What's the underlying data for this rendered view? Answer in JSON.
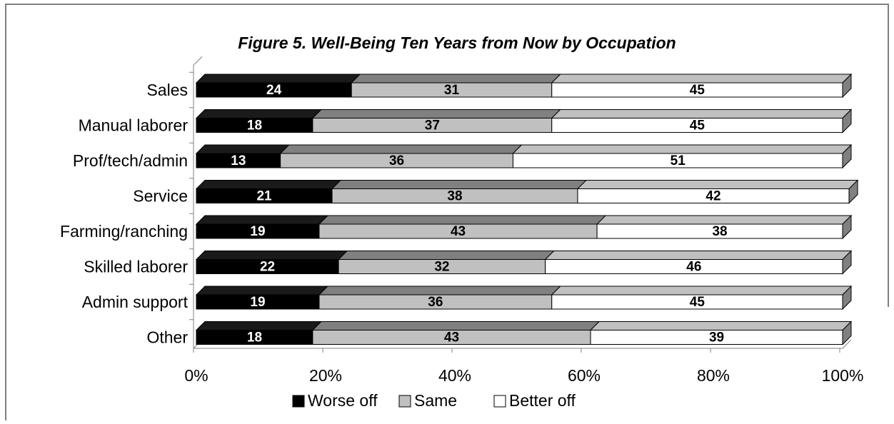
{
  "chart_data": {
    "type": "stacked-bar-horizontal-3d",
    "title": "Figure 5.  Well-Being Ten Years from Now by Occupation",
    "categories": [
      "Sales",
      "Manual laborer",
      "Prof/tech/admin",
      "Service",
      "Farming/ranching",
      "Skilled laborer",
      "Admin support",
      "Other"
    ],
    "series": [
      {
        "name": "Worse off",
        "color": "#000000",
        "top_color": "#1a1a1a",
        "label_color": "#ffffff",
        "values": [
          24,
          18,
          13,
          21,
          19,
          22,
          19,
          18
        ]
      },
      {
        "name": "Same",
        "color": "#c0c0c0",
        "top_color": "#808080",
        "label_color": "#000000",
        "values": [
          31,
          37,
          36,
          38,
          43,
          32,
          36,
          43
        ]
      },
      {
        "name": "Better off",
        "color": "#ffffff",
        "top_color": "#c0c0c0",
        "label_color": "#000000",
        "values": [
          45,
          45,
          51,
          42,
          38,
          46,
          45,
          39
        ]
      }
    ],
    "xlim": [
      0,
      100
    ],
    "xticks": [
      {
        "value": 0,
        "label": "0%"
      },
      {
        "value": 20,
        "label": "20%"
      },
      {
        "value": 40,
        "label": "40%"
      },
      {
        "value": 60,
        "label": "60%"
      },
      {
        "value": 80,
        "label": "80%"
      },
      {
        "value": 100,
        "label": "100%"
      }
    ],
    "legend": "bottom"
  }
}
